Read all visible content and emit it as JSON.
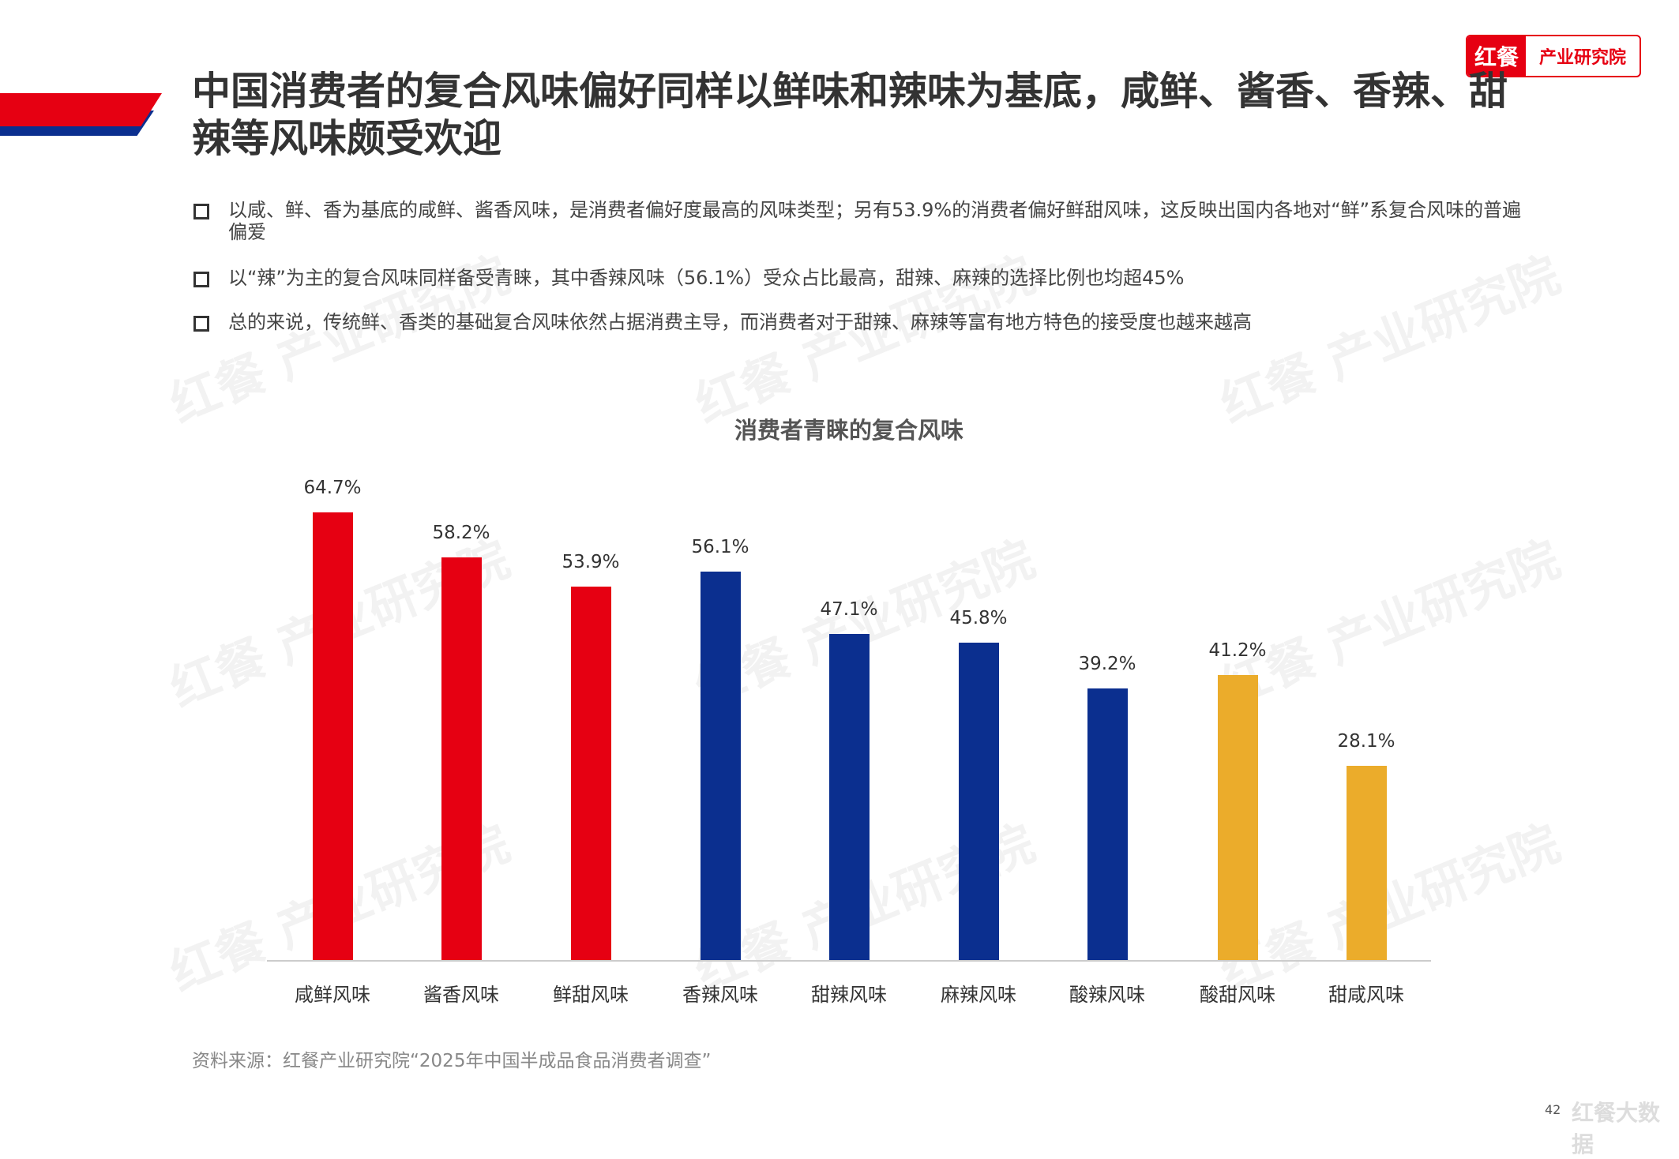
{
  "logo": {
    "brand": "红餐",
    "org": "产业研究院"
  },
  "title": "中国消费者的复合风味偏好同样以鲜味和辣味为基底，咸鲜、酱香、香辣、甜辣等风味颇受欢迎",
  "bullets": [
    "以咸、鲜、香为基底的咸鲜、酱香风味，是消费者偏好度最高的风味类型；另有53.9%的消费者偏好鲜甜风味，这反映出国内各地对“鲜”系复合风味的普遍偏爱",
    "以“辣”为主的复合风味同样备受青睐，其中香辣风味（56.1%）受众占比最高，甜辣、麻辣的选择比例也均超45%",
    "总的来说，传统鲜、香类的基础复合风味依然占据消费主导，而消费者对于甜辣、麻辣等富有地方特色的接受度也越来越高"
  ],
  "chart_data": {
    "type": "bar",
    "title": "消费者青睐的复合风味",
    "categories": [
      "咸鲜风味",
      "酱香风味",
      "鲜甜风味",
      "香辣风味",
      "甜辣风味",
      "麻辣风味",
      "酸辣风味",
      "酸甜风味",
      "甜咸风味"
    ],
    "values": [
      64.7,
      58.2,
      53.9,
      56.1,
      47.1,
      45.8,
      39.2,
      41.2,
      28.1
    ],
    "labels": [
      "64.7%",
      "58.2%",
      "53.9%",
      "56.1%",
      "47.1%",
      "45.8%",
      "39.2%",
      "41.2%",
      "28.1%"
    ],
    "groups": [
      "fresh",
      "fresh",
      "fresh",
      "spicy",
      "spicy",
      "spicy",
      "spicy",
      "sweet",
      "sweet"
    ],
    "colors": {
      "fresh": "#e60012",
      "spicy": "#0b2f8f",
      "sweet": "#ebac2b"
    },
    "ylim": [
      0,
      70
    ],
    "xlabel": "",
    "ylabel": "",
    "grid": false
  },
  "source": "资料来源：红餐产业研究院“2025年中国半成品食品消费者调查”",
  "page_number": "42",
  "watermark": "红餐 产业研究院",
  "footer_watermark": "红餐大数据"
}
